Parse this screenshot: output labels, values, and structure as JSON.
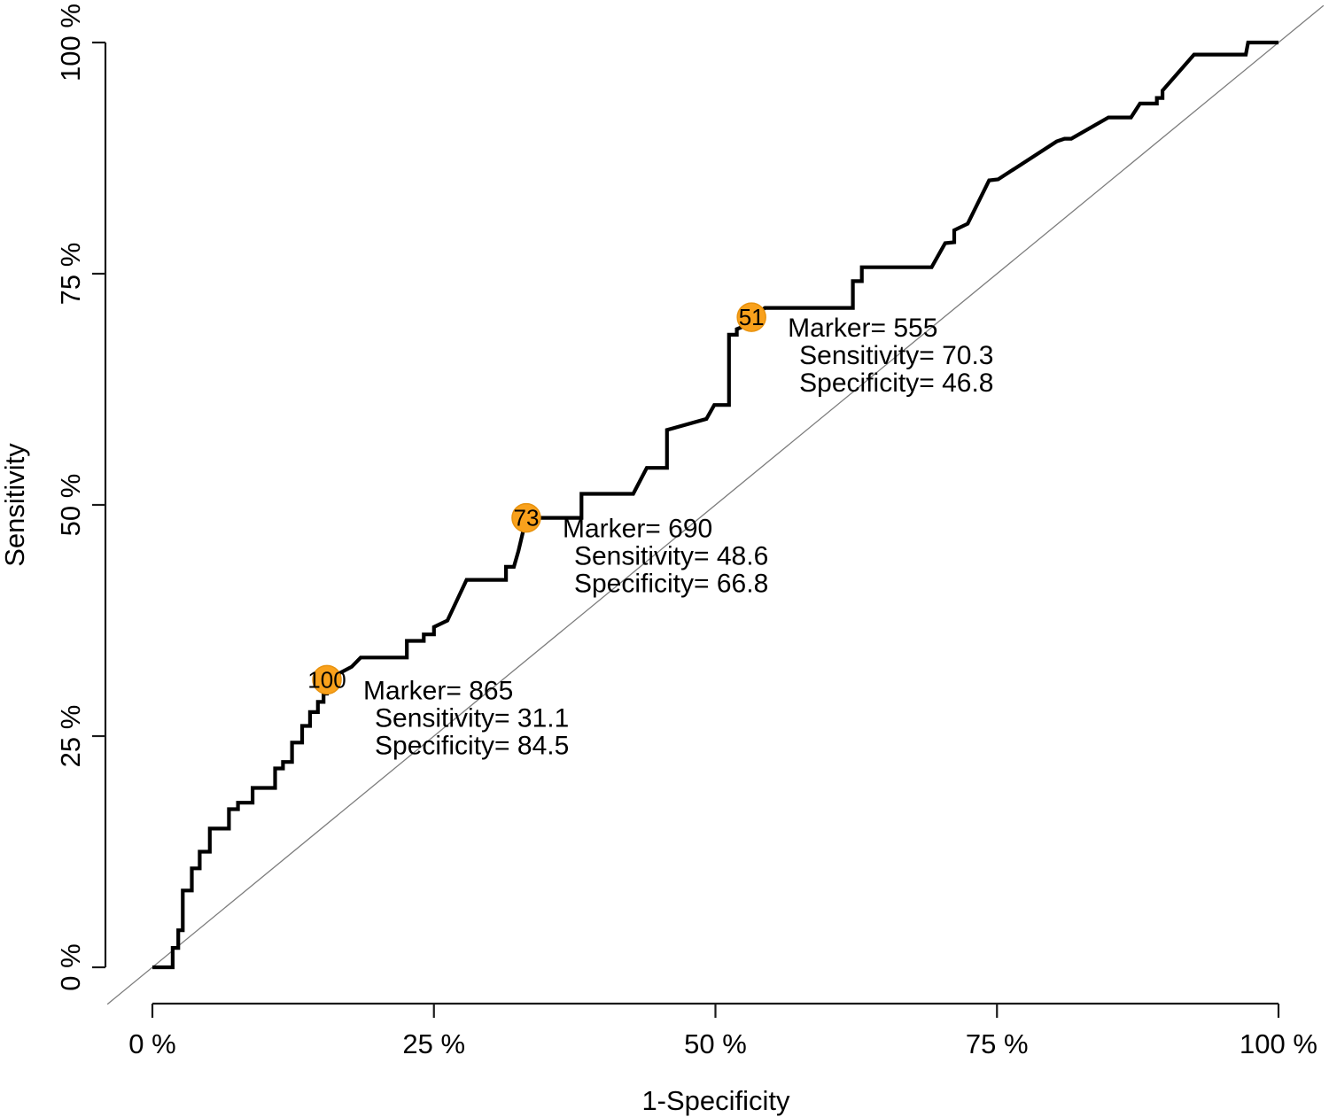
{
  "figure": {
    "background": "#ffffff",
    "text_color": "#000000"
  },
  "chart_data": {
    "type": "line",
    "subtype": "roc-step-curve",
    "title": "",
    "xlabel": "1-Specificity",
    "ylabel": "Sensitivity",
    "xlim": [
      0,
      100
    ],
    "ylim": [
      0,
      100
    ],
    "grid": false,
    "legend": "none",
    "x_ticks": [
      {
        "value": 0,
        "label": "0 %"
      },
      {
        "value": 25,
        "label": "25 %"
      },
      {
        "value": 50,
        "label": "50 %"
      },
      {
        "value": 75,
        "label": "75 %"
      },
      {
        "value": 100,
        "label": "100 %"
      }
    ],
    "y_ticks": [
      {
        "value": 0,
        "label": "0 %"
      },
      {
        "value": 25,
        "label": "25 %"
      },
      {
        "value": 50,
        "label": "50 %"
      },
      {
        "value": 75,
        "label": "75 %"
      },
      {
        "value": 100,
        "label": "100 %"
      }
    ],
    "colors": {
      "curve": "#000000",
      "reference_line": "#7d7d7d",
      "marker_fill": "#F9A11C",
      "marker_stroke": "#E8920E",
      "marker_text": "#1a1200"
    },
    "reference_line": {
      "from": [
        0,
        0
      ],
      "to": [
        100,
        100
      ]
    },
    "curve_points": [
      [
        0,
        0
      ],
      [
        1.8,
        0
      ],
      [
        1.8,
        2.1
      ],
      [
        2.3,
        2.1
      ],
      [
        2.3,
        4
      ],
      [
        2.7,
        4
      ],
      [
        2.7,
        8.3
      ],
      [
        3.5,
        8.3
      ],
      [
        3.5,
        10.7
      ],
      [
        4.2,
        10.7
      ],
      [
        4.2,
        12.5
      ],
      [
        5.1,
        12.5
      ],
      [
        5.1,
        15
      ],
      [
        6.8,
        15
      ],
      [
        6.8,
        17.1
      ],
      [
        7.6,
        17.1
      ],
      [
        7.6,
        17.8
      ],
      [
        8.9,
        17.8
      ],
      [
        8.9,
        19.4
      ],
      [
        10.9,
        19.4
      ],
      [
        10.9,
        21.5
      ],
      [
        11.6,
        21.5
      ],
      [
        11.6,
        22.2
      ],
      [
        12.4,
        22.2
      ],
      [
        12.4,
        24.3
      ],
      [
        13.3,
        24.3
      ],
      [
        13.3,
        26.1
      ],
      [
        14,
        26.1
      ],
      [
        14,
        27.6
      ],
      [
        14.7,
        27.6
      ],
      [
        14.7,
        28.7
      ],
      [
        15.2,
        28.7
      ],
      [
        15.2,
        29.6
      ],
      [
        15.5,
        29.6
      ],
      [
        15.5,
        31.1
      ],
      [
        16.3,
        31.6
      ],
      [
        17.7,
        32.5
      ],
      [
        18.5,
        33.5
      ],
      [
        22.6,
        33.5
      ],
      [
        22.6,
        35.3
      ],
      [
        24.1,
        35.3
      ],
      [
        24.1,
        36
      ],
      [
        25,
        36
      ],
      [
        25,
        36.8
      ],
      [
        26.2,
        37.5
      ],
      [
        27.9,
        41.9
      ],
      [
        31.4,
        41.9
      ],
      [
        31.4,
        43.3
      ],
      [
        32.1,
        43.3
      ],
      [
        32.5,
        45
      ],
      [
        33.2,
        48.6
      ],
      [
        38.1,
        48.6
      ],
      [
        38.1,
        51.2
      ],
      [
        42.7,
        51.2
      ],
      [
        43.9,
        54
      ],
      [
        45.7,
        54
      ],
      [
        45.7,
        58.1
      ],
      [
        49.2,
        59.3
      ],
      [
        49.9,
        60.8
      ],
      [
        51.2,
        60.8
      ],
      [
        51.2,
        68.4
      ],
      [
        51.9,
        68.4
      ],
      [
        51.9,
        69
      ],
      [
        52.5,
        69.3
      ],
      [
        53.2,
        70.3
      ],
      [
        54.4,
        71.3
      ],
      [
        62.2,
        71.3
      ],
      [
        62.2,
        74.2
      ],
      [
        63,
        74.2
      ],
      [
        63,
        75.7
      ],
      [
        69.2,
        75.7
      ],
      [
        70.4,
        78.3
      ],
      [
        71.2,
        78.4
      ],
      [
        71.2,
        79.7
      ],
      [
        72.4,
        80.4
      ],
      [
        74.3,
        85.1
      ],
      [
        75.1,
        85.2
      ],
      [
        80.3,
        89.3
      ],
      [
        81,
        89.6
      ],
      [
        81.6,
        89.6
      ],
      [
        84.9,
        91.9
      ],
      [
        86.9,
        91.9
      ],
      [
        87.7,
        93.4
      ],
      [
        89.2,
        93.4
      ],
      [
        89.2,
        94
      ],
      [
        89.7,
        94
      ],
      [
        89.7,
        94.8
      ],
      [
        92.5,
        98.7
      ],
      [
        97.1,
        98.7
      ],
      [
        97.3,
        100
      ],
      [
        100,
        100
      ]
    ],
    "markers": [
      {
        "label": "100",
        "x": 15.5,
        "y": 31.1,
        "annotation": [
          "Marker= 865",
          "Sensitivity= 31.1",
          "Specificity= 84.5"
        ]
      },
      {
        "label": "73",
        "x": 33.2,
        "y": 48.6,
        "annotation": [
          "Marker= 690",
          "Sensitivity= 48.6",
          "Specificity= 66.8"
        ]
      },
      {
        "label": "51",
        "x": 53.2,
        "y": 70.3,
        "annotation": [
          "Marker= 555",
          "Sensitivity= 70.3",
          "Specificity= 46.8"
        ]
      }
    ]
  }
}
